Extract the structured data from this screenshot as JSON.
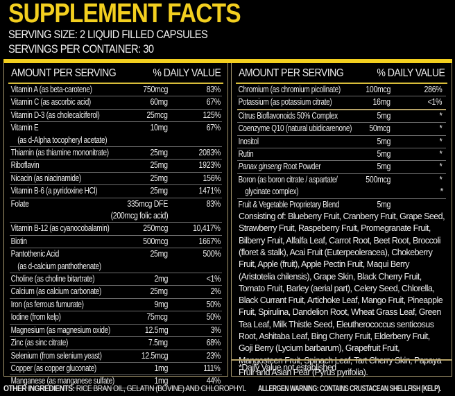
{
  "title": "SUPPLEMENT FACTS",
  "serving_size": "SERVING SIZE: 2 LIQUID FILLED CAPSULES",
  "servings_per_container": "SERVINGS PER CONTAINER: 30",
  "header": {
    "amount": "AMOUNT PER SERVING",
    "dv": "% DAILY VALUE"
  },
  "colors": {
    "accent": "#f3cf1f",
    "background": "#000000",
    "text": "#ececec"
  },
  "left": [
    {
      "name": "Vitamin A (as beta-carotene)",
      "amount": "750mcg",
      "dv": "83%"
    },
    {
      "name": "Vitamin C (as ascorbic acid)",
      "amount": "60mg",
      "dv": "67%"
    },
    {
      "name": "Vitamin D-3 (as cholecalciferol)",
      "amount": "25mcg",
      "dv": "125%"
    },
    {
      "name": "Vitamin E",
      "name2": "(as d-Alpha tocopheryl acetate)",
      "amount": "10mg",
      "dv": "67%"
    },
    {
      "name": "Thiamin (as thiamine mononitrate)",
      "amount": "25mg",
      "dv": "2083%"
    },
    {
      "name": "Riboflavin",
      "amount": "25mg",
      "dv": "1923%"
    },
    {
      "name": "Nicacin (as niacinamide)",
      "amount": "25mg",
      "dv": "156%"
    },
    {
      "name": "Vitamin B-6 (a pyridoxine HCl)",
      "amount": "25mg",
      "dv": "1471%"
    },
    {
      "name": "Folate",
      "amount": "335mcg DFE",
      "amount2": "(200mcg folic acid)",
      "dv": "83%"
    },
    {
      "name": "Vitamin B-12 (as cyanocobalamin)",
      "amount": "250mcg",
      "dv": "10,417%"
    },
    {
      "name": "Biotin",
      "amount": "500mcg",
      "dv": "1667%"
    },
    {
      "name": "Pantothenic Acid",
      "name2": "(as d-calcium panthothenate)",
      "amount": "25mg",
      "dv": "500%"
    },
    {
      "name": "Choline (as choline bitartrate)",
      "amount": "2mg",
      "dv": "<1%"
    },
    {
      "name": "Calcium (as calcium carbonate)",
      "amount": "25mg",
      "dv": "2%"
    },
    {
      "name": "Iron (as ferrous fumurate)",
      "amount": "9mg",
      "dv": "50%"
    },
    {
      "name": "Iodine (from kelp)",
      "amount": "75mcg",
      "dv": "50%"
    },
    {
      "name": "Magnesium (as magnesium oxide)",
      "amount": "12.5mg",
      "dv": "3%"
    },
    {
      "name": "Zinc (as sinc citrate)",
      "amount": "7.5mg",
      "dv": "68%"
    },
    {
      "name": "Selenium (from selenium yeast)",
      "amount": "12.5mcg",
      "dv": "23%"
    },
    {
      "name": "Copper (as copper gluconate)",
      "amount": "1mg",
      "dv": "111%"
    },
    {
      "name": "Manganese (as manganese sulfate)",
      "amount": "1mg",
      "dv": "44%"
    }
  ],
  "right": [
    {
      "name": "Chromium (as chromium picolinate)",
      "amount": "100mcg",
      "dv": "286%"
    },
    {
      "name": "Potassium (as potassium citrate)",
      "amount": "16mg",
      "dv": "<1%"
    },
    {
      "name": "Citrus Bioflavonoids 50% Complex",
      "amount": "5mg",
      "dv": "*"
    },
    {
      "name": "Coenzyme Q10 (natural ubidicarenone)",
      "amount": "50mcg",
      "dv": "*"
    },
    {
      "name": "Inositol",
      "amount": "5mg",
      "dv": "*"
    },
    {
      "name": "Rutin",
      "amount": "5mg",
      "dv": "*"
    },
    {
      "name_italic": "Panax ginseng",
      "name": " Root Powder",
      "amount": "5mg",
      "dv": "*"
    },
    {
      "name": "Boron (as boron citrate / aspartate/",
      "name2": "glycinate complex)",
      "amount": "500mcg",
      "dv": "*",
      "dv2": "*"
    }
  ],
  "blend": {
    "name": "Fruit & Vegetable Proprietary Blend",
    "amount": "5mg",
    "consisting": "Consisting of: Blueberry Fruit, Cranberry Fruit, Grape Seed, Strawberry Fruit, Raspeberry Fruit, Promegranate Fruit, Bilberry Fruit, Alfalfa Leaf, Carrot Root, Beet Root, Broccoli (floret & stalk), Acai Fruit (Euterpeoleracea), Chokeberry Fruit, Apple (fruit), Apple Pectin Fruit, Maqui Berry (Aristotelia chilensis), Grape Skin, Black Cherry Fruit, Tomato Fruit, Barley (aerial part), Celery Seed, Chlorella, Black Currant Fruit, Artichoke Leaf, Mango Fruit, Pineapple Fruit, Spirulina, Dandelion Root, Wheat Grass Leaf, Green Tea Leaf, Milk Thistle Seed, Eleutherococcus senticosus Root, Ashitaba Leaf, Bing Cherry Fruit, Elderberry Fruit, Goji Berry (Lycium barbarum), Grapefruit Fruit, Mangosteen Fruit, Spinach Leaf, Tart Cherry Skin, Papaya Fruir and Asian Pear (Pyrus pyrifolia)."
  },
  "footnote": "*Daily Value not established",
  "other_ingredients": {
    "label": "OTHER INGREDIENTS:",
    "text": " RICE BRAN OIL, GELATIN (BOVINE) AND CHLOROPHYL"
  },
  "allergen": "ALLERGEN WARNING: CONTAINS CRUSTACEAN SHELLFISH (KELP)."
}
